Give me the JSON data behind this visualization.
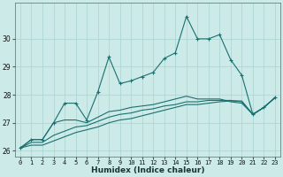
{
  "title": "",
  "xlabel": "Humidex (Indice chaleur)",
  "ylabel": "",
  "background_color": "#cceae8",
  "grid_color": "#aad4d2",
  "line_color": "#1a7070",
  "x": [
    0,
    1,
    2,
    3,
    4,
    5,
    6,
    7,
    8,
    9,
    10,
    11,
    12,
    13,
    14,
    15,
    16,
    17,
    18,
    19,
    20,
    21,
    22,
    23
  ],
  "series": [
    [
      26.1,
      26.4,
      26.4,
      27.0,
      27.7,
      27.7,
      27.1,
      28.1,
      29.35,
      28.4,
      28.5,
      28.65,
      28.8,
      29.3,
      29.5,
      30.8,
      30.0,
      30.0,
      30.15,
      29.25,
      28.7,
      27.3,
      27.55,
      27.9
    ],
    [
      26.1,
      26.4,
      26.4,
      27.0,
      27.1,
      27.1,
      27.0,
      27.2,
      27.4,
      27.45,
      27.55,
      27.6,
      27.65,
      27.75,
      27.85,
      27.95,
      27.85,
      27.85,
      27.85,
      27.75,
      27.7,
      27.3,
      27.55,
      27.9
    ],
    [
      26.1,
      26.3,
      26.3,
      26.55,
      26.7,
      26.85,
      26.9,
      27.05,
      27.2,
      27.3,
      27.35,
      27.45,
      27.5,
      27.6,
      27.65,
      27.75,
      27.75,
      27.8,
      27.8,
      27.8,
      27.75,
      27.3,
      27.55,
      27.9
    ],
    [
      26.1,
      26.2,
      26.2,
      26.35,
      26.5,
      26.65,
      26.75,
      26.85,
      27.0,
      27.1,
      27.15,
      27.25,
      27.35,
      27.45,
      27.55,
      27.65,
      27.65,
      27.7,
      27.75,
      27.78,
      27.78,
      27.3,
      27.55,
      27.9
    ]
  ],
  "ylim": [
    25.8,
    31.3
  ],
  "yticks": [
    26,
    27,
    28,
    29,
    30
  ],
  "xticks": [
    0,
    1,
    2,
    3,
    4,
    5,
    6,
    7,
    8,
    9,
    10,
    11,
    12,
    13,
    14,
    15,
    16,
    17,
    18,
    19,
    20,
    21,
    22,
    23
  ],
  "marker": "+",
  "linewidth": 0.8,
  "markersize": 3.5,
  "xlabel_fontsize": 6.5,
  "tick_fontsize": 5,
  "ytick_fontsize": 5.5
}
